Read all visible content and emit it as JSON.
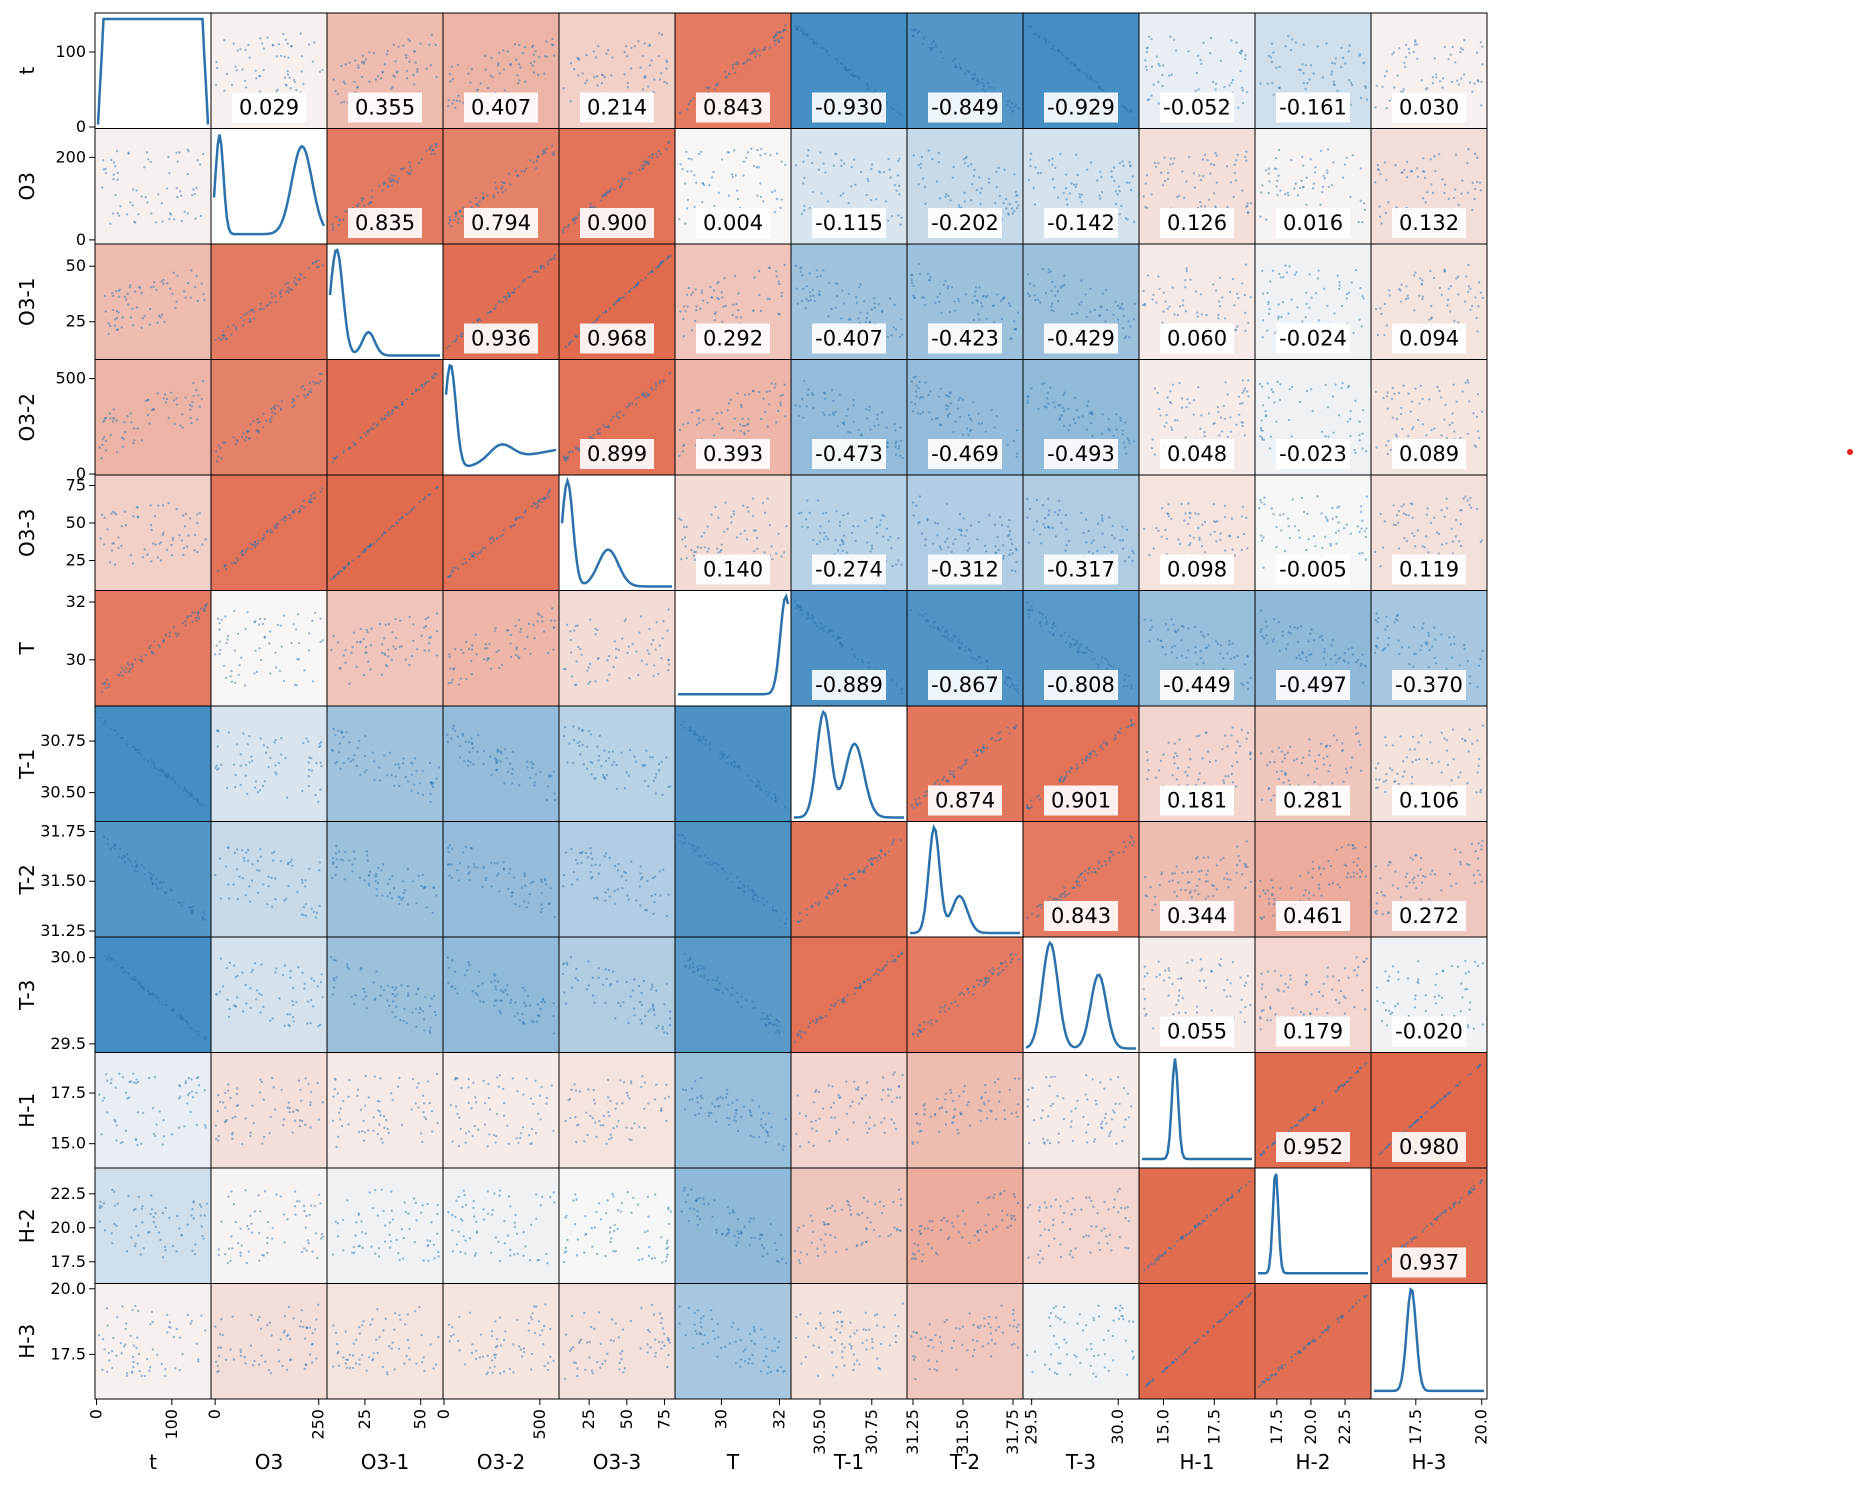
{
  "chart_data": {
    "type": "pair-grid",
    "title": "",
    "variables": [
      "t",
      "O3",
      "O3-1",
      "O3-2",
      "O3-3",
      "T",
      "T-1",
      "T-2",
      "T-3",
      "H-1",
      "H-2",
      "H-3"
    ],
    "colormap": {
      "negative": "#3a87c0",
      "neutral": "#f7f7f7",
      "positive": "#e0674a"
    },
    "line_color": "#2b72ad",
    "diagonal": "kde",
    "lower": "scatter",
    "upper": "scatter-with-correlation",
    "correlation": [
      [
        1.0,
        0.029,
        0.355,
        0.407,
        0.214,
        0.843,
        -0.93,
        -0.849,
        -0.929,
        -0.052,
        -0.161,
        0.03
      ],
      [
        0.029,
        1.0,
        0.835,
        0.794,
        0.9,
        0.004,
        -0.115,
        -0.202,
        -0.142,
        0.126,
        0.016,
        0.132
      ],
      [
        0.355,
        0.835,
        1.0,
        0.936,
        0.968,
        0.292,
        -0.407,
        -0.423,
        -0.429,
        0.06,
        -0.024,
        0.094
      ],
      [
        0.407,
        0.794,
        0.936,
        1.0,
        0.899,
        0.393,
        -0.473,
        -0.469,
        -0.493,
        0.048,
        -0.023,
        0.089
      ],
      [
        0.214,
        0.9,
        0.968,
        0.899,
        1.0,
        0.14,
        -0.274,
        -0.312,
        -0.317,
        0.098,
        -0.005,
        0.119
      ],
      [
        0.843,
        0.004,
        0.292,
        0.393,
        0.14,
        1.0,
        -0.889,
        -0.867,
        -0.808,
        -0.449,
        -0.497,
        -0.37
      ],
      [
        -0.93,
        -0.115,
        -0.407,
        -0.473,
        -0.274,
        -0.889,
        1.0,
        0.874,
        0.901,
        0.181,
        0.281,
        0.106
      ],
      [
        -0.849,
        -0.202,
        -0.423,
        -0.469,
        -0.312,
        -0.867,
        0.874,
        1.0,
        0.843,
        0.344,
        0.461,
        0.272
      ],
      [
        -0.929,
        -0.142,
        -0.429,
        -0.493,
        -0.317,
        -0.808,
        0.901,
        0.843,
        1.0,
        0.055,
        0.179,
        -0.02
      ],
      [
        -0.052,
        0.126,
        0.06,
        0.048,
        0.098,
        -0.449,
        0.181,
        0.344,
        0.055,
        1.0,
        0.952,
        0.98
      ],
      [
        -0.161,
        0.016,
        -0.024,
        -0.023,
        -0.005,
        -0.497,
        0.281,
        0.461,
        0.179,
        0.952,
        1.0,
        0.937
      ],
      [
        0.03,
        0.132,
        0.094,
        0.089,
        0.119,
        -0.37,
        0.106,
        0.272,
        -0.02,
        0.98,
        0.937,
        1.0
      ]
    ],
    "correlation_labels": [
      [
        null,
        "0.029",
        "0.355",
        "0.407",
        "0.214",
        "0.843",
        "-0.930",
        "-0.849",
        "-0.929",
        "-0.052",
        "-0.161",
        "0.030"
      ],
      [
        null,
        null,
        "0.835",
        "0.794",
        "0.900",
        "0.004",
        "-0.115",
        "-0.202",
        "-0.142",
        "0.126",
        "0.016",
        "0.132"
      ],
      [
        null,
        null,
        null,
        "0.936",
        "0.968",
        "0.292",
        "-0.407",
        "-0.423",
        "-0.429",
        "0.060",
        "-0.024",
        "0.094"
      ],
      [
        null,
        null,
        null,
        null,
        "0.899",
        "0.393",
        "-0.473",
        "-0.469",
        "-0.493",
        "0.048",
        "-0.023",
        "0.089"
      ],
      [
        null,
        null,
        null,
        null,
        null,
        "0.140",
        "-0.274",
        "-0.312",
        "-0.317",
        "0.098",
        "-0.005",
        "0.119"
      ],
      [
        null,
        null,
        null,
        null,
        null,
        null,
        "-0.889",
        "-0.867",
        "-0.808",
        "-0.449",
        "-0.497",
        "-0.370"
      ],
      [
        null,
        null,
        null,
        null,
        null,
        null,
        null,
        "0.874",
        "0.901",
        "0.181",
        "0.281",
        "0.106"
      ],
      [
        null,
        null,
        null,
        null,
        null,
        null,
        null,
        null,
        "0.843",
        "0.344",
        "0.461",
        "0.272"
      ],
      [
        null,
        null,
        null,
        null,
        null,
        null,
        null,
        null,
        null,
        "0.055",
        "0.179",
        "-0.020"
      ],
      [
        null,
        null,
        null,
        null,
        null,
        null,
        null,
        null,
        null,
        null,
        "0.952",
        "0.980"
      ],
      [
        null,
        null,
        null,
        null,
        null,
        null,
        null,
        null,
        null,
        null,
        null,
        "0.937"
      ],
      [
        null,
        null,
        null,
        null,
        null,
        null,
        null,
        null,
        null,
        null,
        null,
        null
      ]
    ],
    "y_ticks": [
      [
        {
          "v": 0,
          "label": "0"
        },
        {
          "v": 100,
          "label": "100"
        }
      ],
      [
        {
          "v": 0,
          "label": "0"
        },
        {
          "v": 200,
          "label": "200"
        }
      ],
      [
        {
          "v": 25,
          "label": "25"
        },
        {
          "v": 50,
          "label": "50"
        }
      ],
      [
        {
          "v": 0,
          "label": "0"
        },
        {
          "v": 500,
          "label": "500"
        }
      ],
      [
        {
          "v": 25,
          "label": "25"
        },
        {
          "v": 50,
          "label": "50"
        },
        {
          "v": 75,
          "label": "75"
        }
      ],
      [
        {
          "v": 30,
          "label": "30"
        },
        {
          "v": 32,
          "label": "32"
        }
      ],
      [
        {
          "v": 30.5,
          "label": "30.50"
        },
        {
          "v": 30.75,
          "label": "30.75"
        }
      ],
      [
        {
          "v": 31.25,
          "label": "31.25"
        },
        {
          "v": 31.5,
          "label": "31.50"
        },
        {
          "v": 31.75,
          "label": "31.75"
        }
      ],
      [
        {
          "v": 29.5,
          "label": "29.5"
        },
        {
          "v": 30.0,
          "label": "30.0"
        }
      ],
      [
        {
          "v": 15.0,
          "label": "15.0"
        },
        {
          "v": 17.5,
          "label": "17.5"
        }
      ],
      [
        {
          "v": 17.5,
          "label": "17.5"
        },
        {
          "v": 20.0,
          "label": "20.0"
        },
        {
          "v": 22.5,
          "label": "22.5"
        }
      ],
      [
        {
          "v": 17.5,
          "label": "17.5"
        },
        {
          "v": 20.0,
          "label": "20.0"
        }
      ]
    ],
    "x_ticks": [
      [
        {
          "v": 0,
          "label": "0"
        },
        {
          "v": 100,
          "label": "100"
        }
      ],
      [
        {
          "v": 0,
          "label": "0"
        },
        {
          "v": 250,
          "label": "250"
        }
      ],
      [
        {
          "v": 25,
          "label": "25"
        },
        {
          "v": 50,
          "label": "50"
        }
      ],
      [
        {
          "v": 0,
          "label": "0"
        },
        {
          "v": 500,
          "label": "500"
        }
      ],
      [
        {
          "v": 25,
          "label": "25"
        },
        {
          "v": 50,
          "label": "50"
        },
        {
          "v": 75,
          "label": "75"
        }
      ],
      [
        {
          "v": 30,
          "label": "30"
        },
        {
          "v": 32,
          "label": "32"
        }
      ],
      [
        {
          "v": 30.5,
          "label": "30.50"
        },
        {
          "v": 30.75,
          "label": "30.75"
        }
      ],
      [
        {
          "v": 31.25,
          "label": "31.25"
        },
        {
          "v": 31.5,
          "label": "31.50"
        },
        {
          "v": 31.75,
          "label": "31.75"
        }
      ],
      [
        {
          "v": 29.5,
          "label": "29.5"
        },
        {
          "v": 30.0,
          "label": "30.0"
        }
      ],
      [
        {
          "v": 15.0,
          "label": "15.0"
        },
        {
          "v": 17.5,
          "label": "17.5"
        }
      ],
      [
        {
          "v": 17.5,
          "label": "17.5"
        },
        {
          "v": 20.0,
          "label": "20.0"
        },
        {
          "v": 22.5,
          "label": "22.5"
        }
      ],
      [
        {
          "v": 17.5,
          "label": "17.5"
        },
        {
          "v": 20.0,
          "label": "20.0"
        }
      ]
    ],
    "ranges": [
      [
        -2,
        152
      ],
      [
        -10,
        270
      ],
      [
        8,
        60
      ],
      [
        -5,
        600
      ],
      [
        5,
        82
      ],
      [
        28.4,
        32.4
      ],
      [
        30.36,
        30.92
      ],
      [
        31.22,
        31.8
      ],
      [
        29.45,
        30.12
      ],
      [
        13.8,
        19.5
      ],
      [
        15.9,
        24.4
      ],
      [
        15.8,
        20.2
      ]
    ]
  }
}
